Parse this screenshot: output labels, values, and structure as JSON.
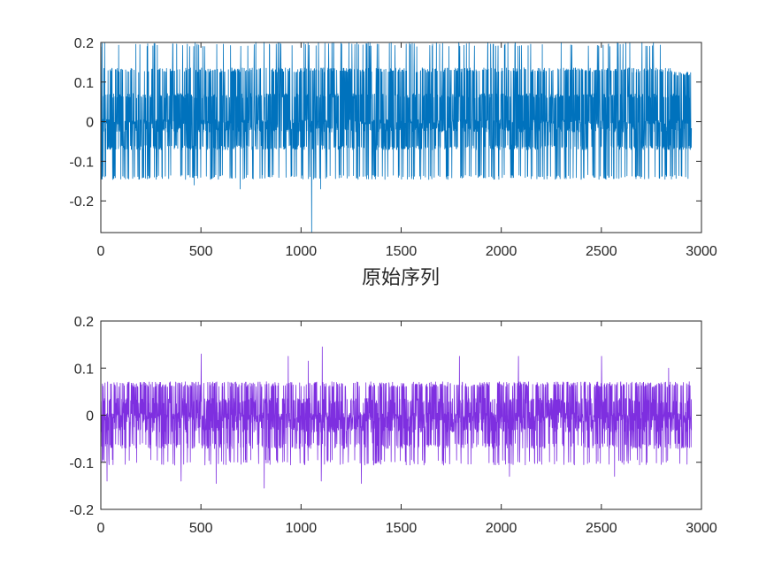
{
  "chart_data": [
    {
      "type": "line",
      "title": "",
      "xlabel": "原始序列",
      "ylabel": "",
      "xlim": [
        0,
        3000
      ],
      "ylim": [
        -0.28,
        0.2
      ],
      "xticks": [
        0,
        500,
        1000,
        1500,
        2000,
        2500,
        3000
      ],
      "yticks": [
        0.2,
        0.1,
        0,
        -0.1,
        -0.2
      ],
      "xtick_labels": [
        "0",
        "500",
        "1000",
        "1500",
        "2000",
        "2500",
        "3000"
      ],
      "ytick_labels": [
        "0.2",
        "0.1",
        "0",
        "-0.1",
        "-0.2"
      ],
      "grid": false,
      "color": "#0072BD",
      "series": [
        {
          "n_points": 2950,
          "levels": [
            0.195,
            0.13,
            0.065,
            0.0,
            -0.02,
            -0.065,
            -0.14
          ],
          "level_weights": [
            0.05,
            0.17,
            0.17,
            0.2,
            0.14,
            0.17,
            0.1
          ],
          "tail_start": 2850,
          "tail_max": 0.125,
          "extreme": {
            "x": 1052,
            "y": -0.28
          },
          "dips": [
            {
              "x": 465,
              "y": -0.16
            },
            {
              "x": 695,
              "y": -0.17
            },
            {
              "x": 1097,
              "y": -0.17
            }
          ]
        }
      ]
    },
    {
      "type": "line",
      "title": "",
      "xlabel": "",
      "ylabel": "",
      "xlim": [
        0,
        3000
      ],
      "ylim": [
        -0.2,
        0.2
      ],
      "xticks": [
        0,
        500,
        1000,
        1500,
        2000,
        2500,
        3000
      ],
      "yticks": [
        0.2,
        0.1,
        0,
        -0.1,
        -0.2
      ],
      "xtick_labels": [
        "0",
        "500",
        "1000",
        "1500",
        "2000",
        "2500",
        "3000"
      ],
      "ytick_labels": [
        "0.2",
        "0.1",
        "0",
        "-0.1",
        "-0.2"
      ],
      "grid": false,
      "color": "#7E2FE0",
      "series": [
        {
          "n_points": 2950,
          "levels": [
            0.065,
            0.03,
            0.0,
            -0.01,
            -0.03,
            -0.065,
            -0.1
          ],
          "level_weights": [
            0.2,
            0.16,
            0.2,
            0.14,
            0.13,
            0.12,
            0.05
          ],
          "peaks": [
            {
              "x": 500,
              "y": 0.13
            },
            {
              "x": 935,
              "y": 0.125
            },
            {
              "x": 1105,
              "y": 0.145
            },
            {
              "x": 1790,
              "y": 0.125
            },
            {
              "x": 2085,
              "y": 0.125
            },
            {
              "x": 2500,
              "y": 0.125
            },
            {
              "x": 1035,
              "y": 0.115
            },
            {
              "x": 2835,
              "y": 0.1
            }
          ],
          "dips": [
            {
              "x": 815,
              "y": -0.155
            },
            {
              "x": 575,
              "y": -0.145
            },
            {
              "x": 1300,
              "y": -0.145
            },
            {
              "x": 1100,
              "y": -0.14
            },
            {
              "x": 30,
              "y": -0.14
            },
            {
              "x": 400,
              "y": -0.14
            },
            {
              "x": 2040,
              "y": -0.13
            },
            {
              "x": 2565,
              "y": -0.13
            }
          ]
        }
      ]
    }
  ]
}
